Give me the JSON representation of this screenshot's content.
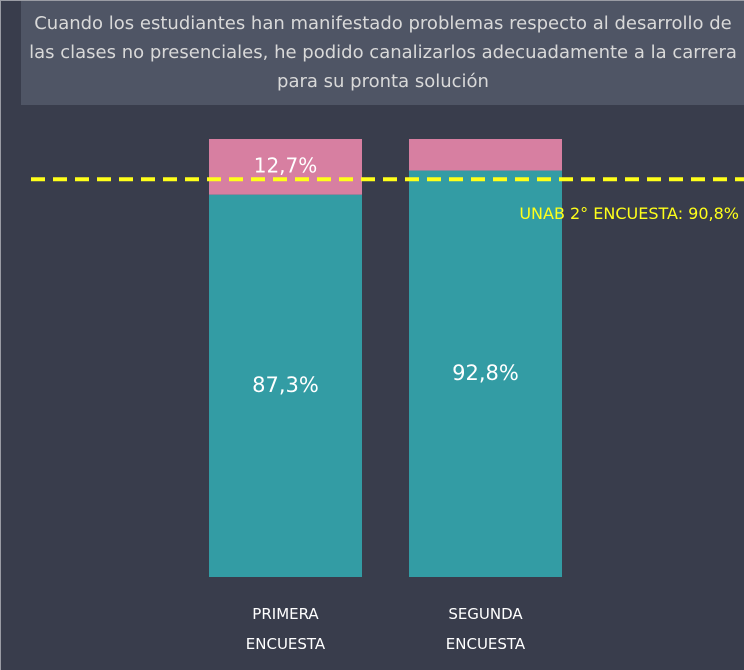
{
  "chart_data": {
    "type": "stacked_bar",
    "title": "Cuando los estudiantes han manifestado problemas respecto al desarrollo de las clases no presenciales, he podido canalizarlos adecuadamente a la carrera para su pronta solución",
    "categories": [
      "PRIMERA ENCUESTA",
      "SEGUNDA ENCUESTA"
    ],
    "series": [
      {
        "color": "#339ca4",
        "values": [
          87.3,
          92.8
        ],
        "value_labels": [
          "87,3%",
          "92,8%"
        ]
      },
      {
        "color": "#d77fa1",
        "values": [
          12.7,
          7.2
        ],
        "value_labels": [
          "12,7%",
          null
        ]
      }
    ],
    "ylim": [
      0,
      100
    ],
    "reference_line": {
      "value": 90.8,
      "label": "UNAB 2° ENCUESTA: 90,8%",
      "color": "#ffff1a"
    }
  }
}
